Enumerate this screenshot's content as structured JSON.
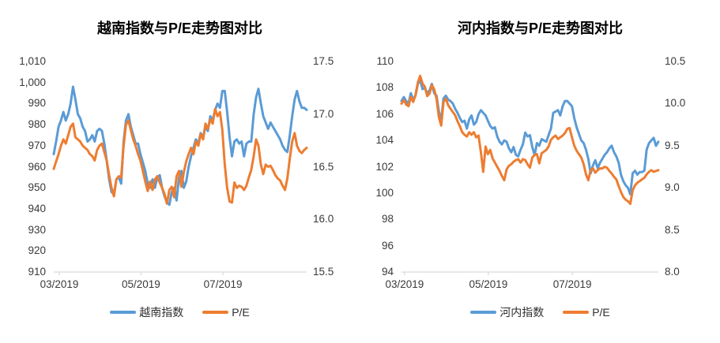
{
  "page": {
    "background": "#FFFFFF",
    "axis_line_color": "#D9D9D9",
    "accent_blue": "#5B9BD5",
    "accent_orange": "#ED7D31"
  },
  "chart_data": [
    {
      "type": "line",
      "title": "越南指数与P/E走势图对比",
      "legend_position": "bottom",
      "grid": false,
      "x_ticks": [
        "03/2019",
        "05/2019",
        "07/2019"
      ],
      "left_axis": {
        "min": 910,
        "max": 1010,
        "ticks": [
          "1,010",
          "1,000",
          "990",
          "980",
          "970",
          "960",
          "950",
          "940",
          "930",
          "920",
          "910"
        ]
      },
      "right_axis": {
        "min": 15.5,
        "max": 17.5,
        "ticks": [
          "17.5",
          "17.0",
          "16.5",
          "16.0",
          "15.5"
        ]
      },
      "legend": [
        {
          "label": "越南指数",
          "color": "#5B9BD5"
        },
        {
          "label": "P/E",
          "color": "#ED7D31"
        }
      ],
      "series": [
        {
          "name": "越南指数",
          "axis": "left",
          "color": "#5B9BD5",
          "values": [
            966,
            972,
            979,
            982,
            986,
            982,
            985,
            990,
            998,
            992,
            985,
            983,
            979,
            977,
            972,
            973,
            975,
            972,
            977,
            978,
            977,
            971,
            963,
            954,
            948,
            947,
            954,
            955,
            952,
            972,
            982,
            985,
            979,
            975,
            971,
            971,
            966,
            962,
            958,
            952,
            950,
            954,
            950,
            955,
            956,
            950,
            946,
            943,
            942,
            948,
            950,
            944,
            955,
            958,
            950,
            953,
            960,
            965,
            969,
            973,
            971,
            976,
            974,
            979,
            977,
            984,
            982,
            987,
            990,
            988,
            996,
            996,
            986,
            974,
            965,
            972,
            973,
            971,
            972,
            965,
            971,
            972,
            972,
            985,
            993,
            997,
            990,
            984,
            981,
            978,
            981,
            979,
            977,
            975,
            973,
            970,
            968,
            967,
            975,
            984,
            992,
            996,
            991,
            988,
            988,
            987
          ]
        },
        {
          "name": "P/E",
          "axis": "right",
          "color": "#ED7D31",
          "values": [
            16.48,
            16.55,
            16.62,
            16.7,
            16.76,
            16.72,
            16.8,
            16.88,
            16.91,
            16.78,
            16.76,
            16.74,
            16.7,
            16.68,
            16.66,
            16.62,
            16.6,
            16.56,
            16.66,
            16.7,
            16.72,
            16.64,
            16.56,
            16.42,
            16.3,
            16.22,
            16.38,
            16.41,
            16.4,
            16.7,
            16.9,
            16.94,
            16.85,
            16.76,
            16.7,
            16.62,
            16.56,
            16.46,
            16.36,
            16.27,
            16.36,
            16.28,
            16.38,
            16.41,
            16.35,
            16.3,
            16.24,
            16.15,
            16.28,
            16.31,
            16.21,
            16.41,
            16.46,
            16.31,
            16.45,
            16.55,
            16.62,
            16.68,
            16.62,
            16.74,
            16.7,
            16.81,
            16.76,
            16.91,
            16.86,
            16.95,
            16.91,
            17.05,
            16.98,
            17.02,
            16.85,
            16.52,
            16.3,
            16.17,
            16.16,
            16.35,
            16.3,
            16.32,
            16.31,
            16.28,
            16.32,
            16.4,
            16.47,
            16.6,
            16.76,
            16.7,
            16.52,
            16.43,
            16.52,
            16.5,
            16.51,
            16.47,
            16.42,
            16.39,
            16.37,
            16.32,
            16.28,
            16.39,
            16.58,
            16.74,
            16.82,
            16.7,
            16.65,
            16.63,
            16.66,
            16.68
          ]
        }
      ]
    },
    {
      "type": "line",
      "title": "河内指数与P/E走势图对比",
      "legend_position": "bottom",
      "grid": false,
      "x_ticks": [
        "03/2019",
        "05/2019",
        "07/2019"
      ],
      "left_axis": {
        "min": 94,
        "max": 110,
        "ticks": [
          "110",
          "108",
          "106",
          "104",
          "102",
          "100",
          "98",
          "96",
          "94"
        ]
      },
      "right_axis": {
        "min": 8.0,
        "max": 10.5,
        "ticks": [
          "10.5",
          "10.0",
          "9.5",
          "9.0",
          "8.5",
          "8.0"
        ]
      },
      "legend": [
        {
          "label": "河内指数",
          "color": "#5B9BD5"
        },
        {
          "label": "P/E",
          "color": "#ED7D31"
        }
      ],
      "series": [
        {
          "name": "河内指数",
          "axis": "left",
          "color": "#5B9BD5",
          "values": [
            107,
            107.3,
            107,
            106.8,
            107.6,
            107.1,
            107.4,
            108.3,
            108.6,
            107.9,
            108,
            107.6,
            107.8,
            108.3,
            107.6,
            107.4,
            106.2,
            105.5,
            107.2,
            107.4,
            107.1,
            107,
            106.8,
            106.4,
            106.1,
            105.7,
            105.4,
            105.5,
            104.9,
            105.6,
            105.9,
            105.2,
            105.4,
            106,
            106.3,
            106.1,
            105.9,
            105.5,
            105.1,
            104.9,
            105,
            104.3,
            103.9,
            103.7,
            104,
            103.9,
            103.4,
            103.1,
            103.5,
            102.9,
            102.8,
            103.3,
            103.7,
            104.6,
            104.3,
            104.4,
            103.5,
            102.9,
            103.8,
            103.6,
            104.1,
            104,
            103.9,
            104.4,
            104.9,
            106.1,
            106.2,
            106.3,
            105.9,
            106.6,
            107,
            107,
            106.8,
            106.6,
            105.7,
            105,
            104.5,
            104,
            103.8,
            103.3,
            102.6,
            101.5,
            102.1,
            102.5,
            101.9,
            102.3,
            102.6,
            102.9,
            103.1,
            103.4,
            103.6,
            103.1,
            102.8,
            102.3,
            101.4,
            100.9,
            100.6,
            100.4,
            99.9,
            101.5,
            101.7,
            101.4,
            101.6,
            101.6,
            101.7,
            103.3,
            103.8,
            104,
            104.2,
            103.6,
            103.9
          ]
        },
        {
          "name": "P/E",
          "axis": "right",
          "color": "#ED7D31",
          "values": [
            10,
            10.04,
            9.99,
            9.97,
            10.08,
            10.02,
            10.1,
            10.25,
            10.33,
            10.24,
            10.2,
            10.09,
            10.12,
            10.22,
            10.17,
            10.06,
            9.84,
            9.74,
            10.02,
            10.06,
            9.98,
            9.94,
            9.9,
            9.86,
            9.79,
            9.73,
            9.66,
            9.63,
            9.61,
            9.66,
            9.63,
            9.66,
            9.6,
            9.62,
            9.42,
            9.19,
            9.49,
            9.4,
            9.45,
            9.35,
            9.3,
            9.25,
            9.2,
            9.14,
            9.09,
            9.22,
            9.26,
            9.28,
            9.31,
            9.33,
            9.34,
            9.3,
            9.34,
            9.33,
            9.28,
            9.24,
            9.36,
            9.39,
            9.4,
            9.29,
            9.41,
            9.43,
            9.45,
            9.49,
            9.57,
            9.6,
            9.62,
            9.58,
            9.6,
            9.62,
            9.65,
            9.7,
            9.71,
            9.6,
            9.5,
            9.44,
            9.4,
            9.36,
            9.28,
            9.16,
            9.09,
            9.21,
            9.23,
            9.18,
            9.21,
            9.23,
            9.23,
            9.25,
            9.24,
            9.2,
            9.17,
            9.13,
            9.1,
            9.02,
            8.95,
            8.89,
            8.86,
            8.84,
            8.81,
            8.97,
            9.03,
            9.06,
            9.08,
            9.1,
            9.12,
            9.16,
            9.19,
            9.21,
            9.19,
            9.2,
            9.21
          ]
        }
      ]
    }
  ]
}
